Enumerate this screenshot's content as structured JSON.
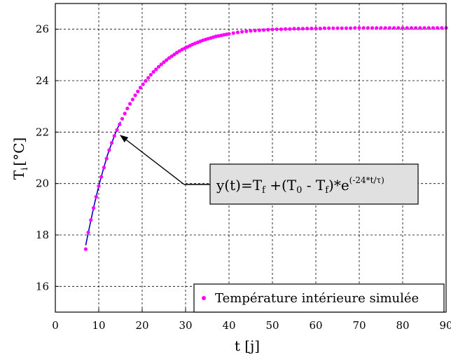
{
  "chart_data": {
    "type": "scatter",
    "title": "",
    "xlabel": "t [j]",
    "ylabel": "T",
    "ylabel_sub": "i",
    "ylabel_unit": "[°C]",
    "xlim": [
      0,
      90
    ],
    "ylim": [
      15,
      27
    ],
    "xticks": [
      0,
      10,
      20,
      30,
      40,
      50,
      60,
      70,
      80,
      90
    ],
    "yticks": [
      16,
      18,
      20,
      22,
      24,
      26
    ],
    "grid": true,
    "legend_position": "bottom-right",
    "series": [
      {
        "name": "Température intérieure simulée",
        "kind": "markers",
        "color": "#ff00ff",
        "x": [
          7.0,
          7.6,
          8.2,
          8.8,
          9.4,
          10.0,
          10.6,
          11.2,
          11.8,
          12.4,
          13.0,
          13.6,
          14.2,
          14.8,
          15.4,
          16.0,
          16.6,
          17.2,
          17.8,
          18.4,
          19.0,
          19.6,
          20.2,
          20.8,
          21.4,
          22.0,
          22.6,
          23.2,
          23.8,
          24.4,
          25.0,
          25.6,
          26.2,
          26.8,
          27.4,
          28.0,
          28.6,
          29.2,
          29.8,
          30.4,
          31.0,
          31.6,
          32.2,
          32.8,
          33.4,
          34.0,
          34.6,
          35.2,
          35.8,
          36.4,
          37.0,
          37.6,
          38.2,
          38.8,
          39.4,
          40.0,
          41.0,
          42.0,
          43.0,
          44.0,
          45.0,
          46.0,
          47.0,
          48.0,
          49.0,
          50.0,
          51.0,
          52.0,
          53.0,
          54.0,
          55.0,
          56.0,
          57.0,
          58.0,
          59.0,
          60.0,
          61.0,
          62.0,
          63.0,
          64.0,
          65.0,
          66.0,
          67.0,
          68.0,
          69.0,
          70.0,
          71.0,
          72.0,
          73.0,
          74.0,
          75.0,
          76.0,
          77.0,
          78.0,
          79.0,
          80.0,
          81.0,
          82.0,
          83.0,
          84.0,
          85.0,
          86.0,
          87.0,
          88.0,
          89.0,
          90.0
        ],
        "y": [
          17.45,
          18.1,
          18.58,
          19.05,
          19.48,
          19.9,
          20.26,
          20.62,
          20.97,
          21.3,
          21.58,
          21.85,
          22.08,
          22.3,
          22.52,
          22.72,
          22.92,
          23.1,
          23.27,
          23.43,
          23.58,
          23.73,
          23.86,
          23.99,
          24.11,
          24.23,
          24.34,
          24.44,
          24.54,
          24.63,
          24.72,
          24.8,
          24.88,
          24.95,
          25.02,
          25.09,
          25.15,
          25.21,
          25.26,
          25.31,
          25.36,
          25.41,
          25.45,
          25.49,
          25.53,
          25.57,
          25.6,
          25.63,
          25.66,
          25.69,
          25.72,
          25.74,
          25.76,
          25.78,
          25.8,
          25.82,
          25.85,
          25.88,
          25.9,
          25.92,
          25.94,
          25.95,
          25.96,
          25.97,
          25.98,
          25.99,
          26.0,
          26.0,
          26.01,
          26.01,
          26.02,
          26.02,
          26.02,
          26.03,
          26.03,
          26.03,
          26.03,
          26.04,
          26.04,
          26.04,
          26.04,
          26.04,
          26.04,
          26.04,
          26.05,
          26.05,
          26.05,
          26.05,
          26.05,
          26.05,
          26.05,
          26.05,
          26.05,
          26.05,
          26.05,
          26.05,
          26.05,
          26.05,
          26.05,
          26.05,
          26.05,
          26.05,
          26.05,
          26.05,
          26.05,
          26.05
        ]
      },
      {
        "kind": "line",
        "color": "#0000c8",
        "x": [
          7.0,
          8.0,
          9.0,
          10.0,
          11.0,
          12.0,
          13.0,
          14.0,
          15.0
        ],
        "y": [
          17.6,
          18.42,
          19.2,
          19.9,
          20.52,
          21.1,
          21.58,
          22.02,
          22.4
        ]
      }
    ],
    "annotation": {
      "base": "y(t)=T",
      "sub_f": "f",
      "plus": " +(T",
      "sub_0": "0",
      "minus": " - T",
      "sub_f2": "f",
      "close": ")*e",
      "sup": "(-24*t/τ)",
      "box_fill": "#e0e0e0",
      "arrow_target": [
        14.5,
        21.95
      ]
    }
  }
}
